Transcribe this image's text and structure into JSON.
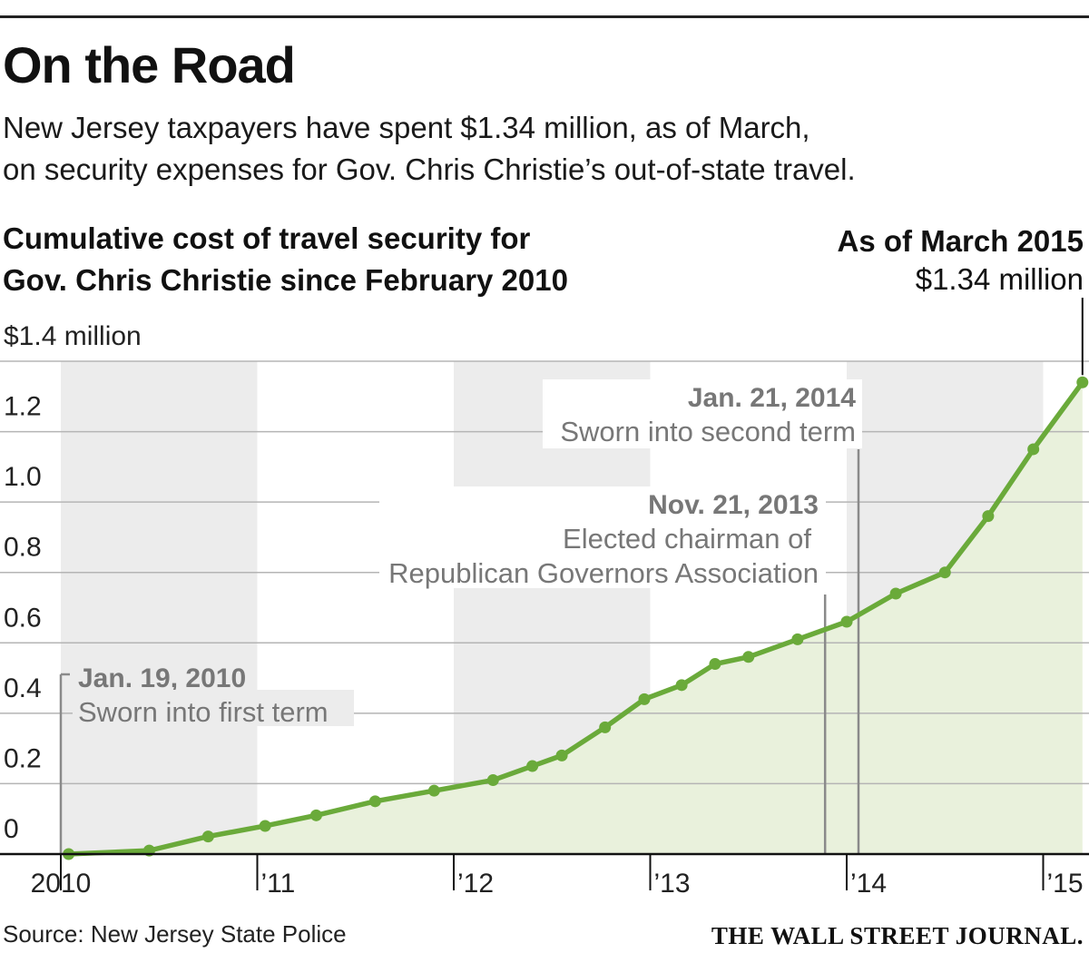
{
  "header": {
    "title": "On the Road",
    "subtitle_line1": "New Jersey taxpayers have spent $1.34 million, as of March,",
    "subtitle_line2": "on security expenses for Gov. Chris Christie’s out-of-state travel."
  },
  "footer": {
    "source": "Source: New Jersey State Police",
    "publisher": "THE WALL STREET JOURNAL."
  },
  "colors": {
    "line": "#6aaa3a",
    "area": "#e9f1dc",
    "band": "#ececec",
    "grid": "#b5b5b5",
    "annotation": "#777777"
  },
  "chart_data": {
    "type": "area",
    "title_line1": "Cumulative cost of travel security for",
    "title_line2": "Gov. Chris Christie since February 2010",
    "unit": "million dollars",
    "ylim": [
      0,
      1.4
    ],
    "xlim": [
      2009.92,
      2015.3
    ],
    "y_ticks": [
      {
        "value": 1.4,
        "label": "$1.4 million"
      },
      {
        "value": 1.2,
        "label": "1.2"
      },
      {
        "value": 1.0,
        "label": "1.0"
      },
      {
        "value": 0.8,
        "label": "0.8"
      },
      {
        "value": 0.6,
        "label": "0.6"
      },
      {
        "value": 0.4,
        "label": "0.4"
      },
      {
        "value": 0.2,
        "label": "0.2"
      },
      {
        "value": 0,
        "label": "0"
      }
    ],
    "x_ticks": [
      {
        "value": 2010,
        "label": "2010"
      },
      {
        "value": 2011,
        "label": "’11"
      },
      {
        "value": 2012,
        "label": "’12"
      },
      {
        "value": 2013,
        "label": "’13"
      },
      {
        "value": 2014,
        "label": "’14"
      },
      {
        "value": 2015,
        "label": "’15"
      }
    ],
    "shaded_years": [
      2010,
      2012,
      2014
    ],
    "x": [
      2010.04,
      2010.45,
      2010.75,
      2011.04,
      2011.3,
      2011.6,
      2011.9,
      2012.2,
      2012.4,
      2012.55,
      2012.77,
      2012.97,
      2013.16,
      2013.33,
      2013.5,
      2013.75,
      2014.0,
      2014.25,
      2014.5,
      2014.72,
      2014.95,
      2015.2
    ],
    "values": [
      0.0,
      0.01,
      0.05,
      0.08,
      0.11,
      0.15,
      0.18,
      0.21,
      0.25,
      0.28,
      0.36,
      0.44,
      0.48,
      0.54,
      0.56,
      0.61,
      0.66,
      0.74,
      0.8,
      0.96,
      1.15,
      1.34
    ],
    "annotations": [
      {
        "x": 2010.05,
        "date": "Jan. 19, 2010",
        "text_lines": [
          "Sworn into first term"
        ]
      },
      {
        "x": 2013.89,
        "date": "Nov. 21, 2013",
        "text_lines": [
          "Elected chairman of",
          "Republican Governors Association"
        ]
      },
      {
        "x": 2014.06,
        "date": "Jan. 21, 2014",
        "text_lines": [
          "Sworn into second term"
        ]
      }
    ],
    "end_label": {
      "title": "As of March 2015",
      "value": "$1.34 million"
    }
  }
}
